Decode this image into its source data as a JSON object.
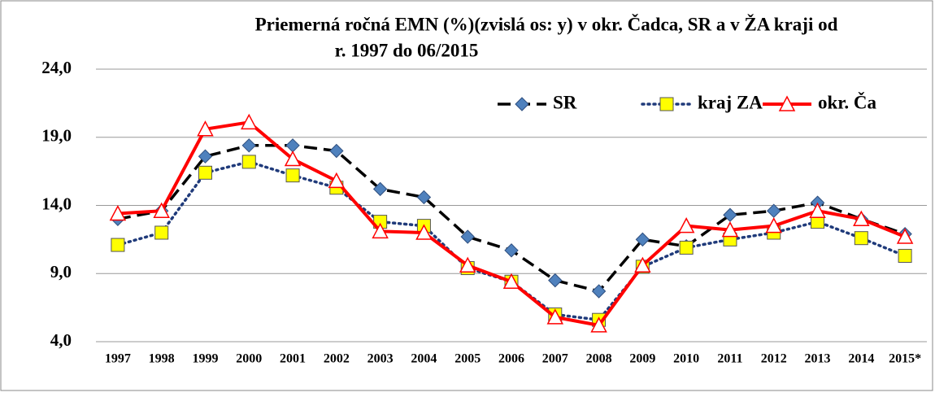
{
  "chart_data": {
    "type": "line",
    "title": [
      "Priemerná ročná EMN (%)(zvislá os: y) v okr. Čadca, SR a v ŽA kraji od",
      "r. 1997 do 06/2015"
    ],
    "categories": [
      "1997",
      "1998",
      "1999",
      "2000",
      "2001",
      "2002",
      "2003",
      "2004",
      "2005",
      "2006",
      "2007",
      "2008",
      "2009",
      "2010",
      "2011",
      "2012",
      "2013",
      "2014",
      "2015*"
    ],
    "series": [
      {
        "name": "SR",
        "color": "#000000",
        "marker_color": "#4f81bd",
        "marker": "diamond",
        "dash": "dashed",
        "values": [
          13.0,
          13.6,
          17.6,
          18.4,
          18.4,
          18.0,
          15.2,
          14.6,
          11.7,
          10.7,
          8.5,
          7.7,
          11.5,
          11.0,
          13.3,
          13.6,
          14.2,
          13.0,
          11.9
        ]
      },
      {
        "name": "kraj ZA",
        "color": "#1f3a7a",
        "marker_color": "#ffff00",
        "marker": "square",
        "dash": "dotted",
        "values": [
          11.1,
          12.0,
          16.4,
          17.2,
          16.2,
          15.3,
          12.8,
          12.5,
          9.4,
          8.4,
          6.0,
          5.6,
          9.5,
          10.9,
          11.5,
          12.0,
          12.8,
          11.6,
          10.3
        ]
      },
      {
        "name": "okr. Ča",
        "color": "#ff0000",
        "marker_color": "#ffffff",
        "marker": "triangle",
        "dash": "solid",
        "values": [
          13.4,
          13.6,
          19.6,
          20.1,
          17.4,
          15.8,
          12.1,
          12.0,
          9.6,
          8.4,
          5.8,
          5.2,
          9.6,
          12.5,
          12.2,
          12.5,
          13.6,
          13.0,
          11.7
        ]
      }
    ],
    "ylim": [
      4,
      24
    ],
    "yticks": [
      {
        "value": 4,
        "label": "4,0"
      },
      {
        "value": 9,
        "label": "9,0"
      },
      {
        "value": 14,
        "label": "14,0"
      },
      {
        "value": 19,
        "label": "19,0"
      },
      {
        "value": 24,
        "label": "24,0"
      }
    ],
    "grid": true,
    "legend": "upper right"
  }
}
